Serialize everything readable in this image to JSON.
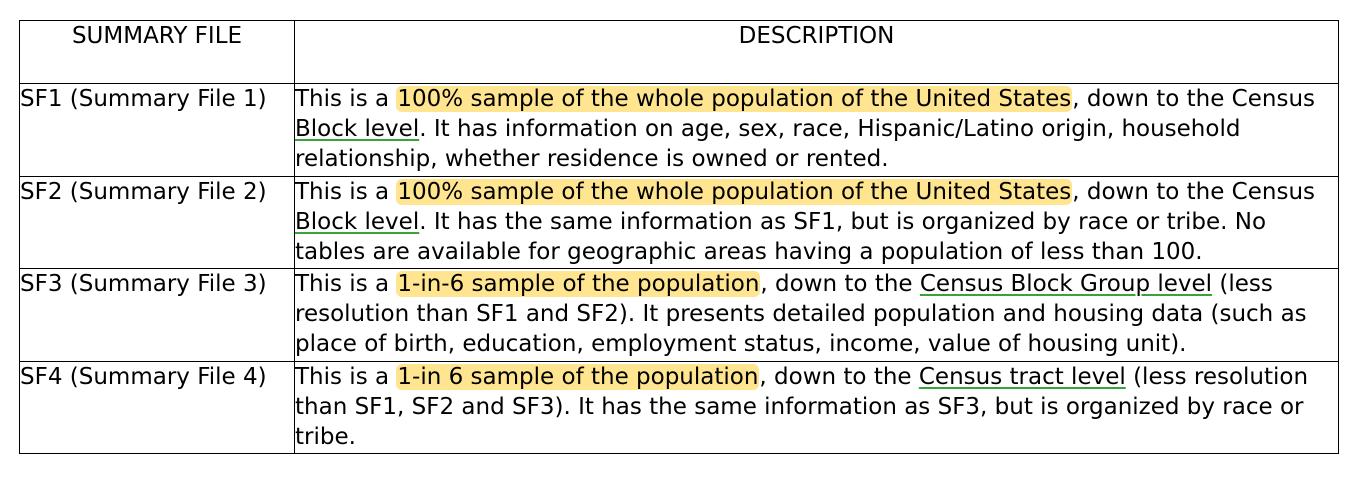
{
  "table": {
    "header": {
      "col1": "SUMMARY FILE",
      "col2": "DESCRIPTION"
    },
    "rows": [
      {
        "file": "SF1 (Summary File 1)",
        "pre": "This is a ",
        "highlight": "100% sample of the whole population of the United States",
        "mid": ", down to the Census ",
        "underline": "Block level",
        "post": ". It has information on age, sex, race, Hispanic/Latino origin, household relationship, whether residence is owned or rented."
      },
      {
        "file": "SF2 (Summary File 2)",
        "pre": "This is a ",
        "highlight": "100% sample of the whole population of the United States",
        "mid": ", down to the Census ",
        "underline": "Block level",
        "post": ". It has the same information as SF1, but is organized by race or tribe. No tables are available for geographic areas having a population of less than 100."
      },
      {
        "file": "SF3 (Summary File 3)",
        "pre": "This is a ",
        "highlight": "1-in-6 sample of the population",
        "mid": ", down to the ",
        "underline": "Census Block Group level",
        "post": " (less resolution than SF1 and SF2). It presents detailed population and housing data (such as place of birth, education, employment status, income, value of housing unit)."
      },
      {
        "file": "SF4 (Summary File 4)",
        "pre": "This is a ",
        "highlight": "1-in 6 sample of the population",
        "mid": ", down to the ",
        "underline": "Census tract level",
        "post": " (less resolution than SF1, SF2 and SF3). It has the same information as SF3, but is organized by race or tribe."
      }
    ]
  }
}
